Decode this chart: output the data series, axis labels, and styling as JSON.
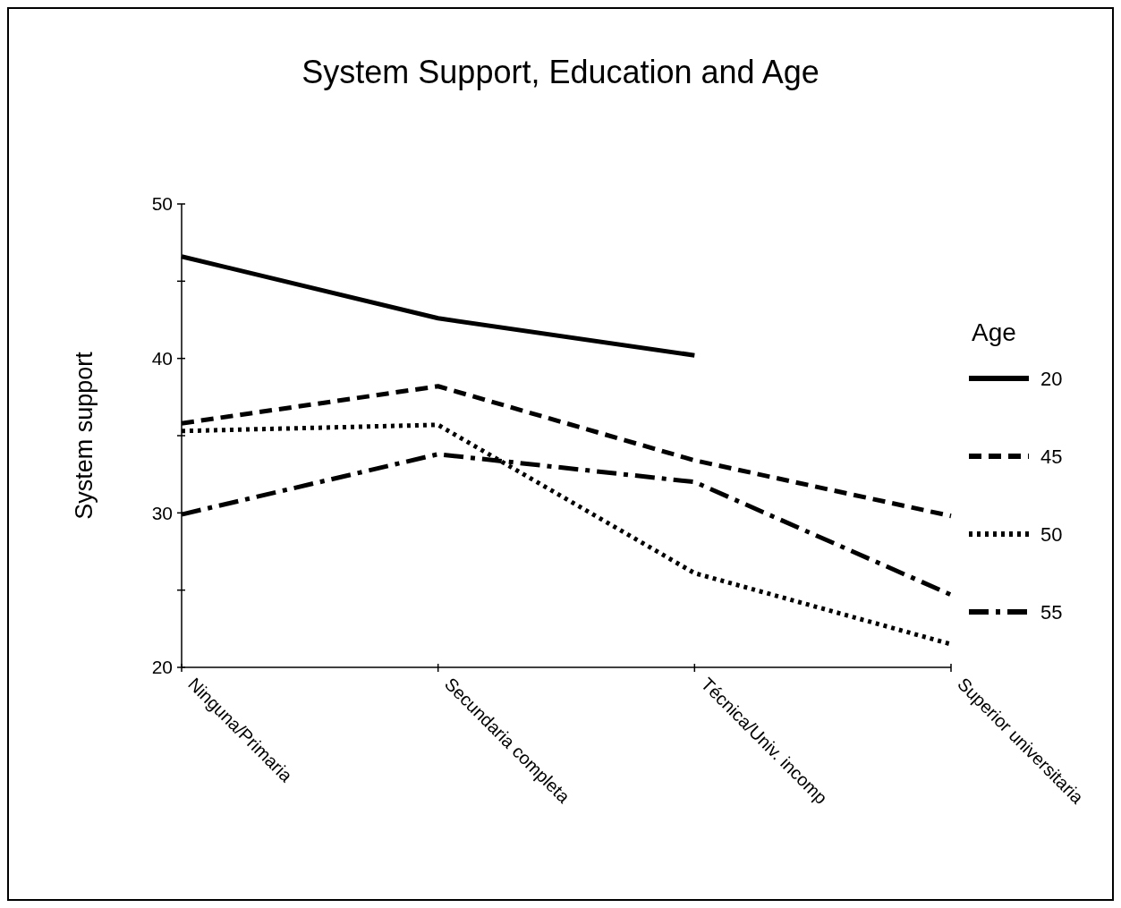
{
  "chart_data": {
    "type": "line",
    "title": "System Support, Education and Age",
    "ylabel": "System support",
    "legend_title": "Age",
    "legend": "right",
    "grid": false,
    "marker": "none",
    "categories": [
      "Ninguna/Primaria",
      "Secundaria completa",
      "Técnica/Univ. incomp",
      "Superior universitaria"
    ],
    "ylim": [
      20,
      50
    ],
    "yticks": [
      20,
      {
        "value": 25,
        "label": null
      },
      30,
      {
        "value": 35,
        "label": null
      },
      40,
      {
        "value": 45,
        "label": null
      },
      50
    ],
    "series": [
      {
        "name": "20",
        "color": "#000000",
        "line_style": "solid",
        "values": [
          46.6,
          42.6,
          40.2,
          null
        ]
      },
      {
        "name": "45",
        "color": "#000000",
        "line_style": "dashed",
        "values": [
          35.8,
          38.2,
          33.4,
          29.8
        ]
      },
      {
        "name": "50",
        "color": "#000000",
        "line_style": "dotted",
        "values": [
          35.3,
          35.7,
          26.1,
          21.5
        ]
      },
      {
        "name": "55",
        "color": "#000000",
        "line_style": "dashdot",
        "values": [
          29.9,
          33.8,
          32.0,
          24.7
        ]
      }
    ]
  }
}
